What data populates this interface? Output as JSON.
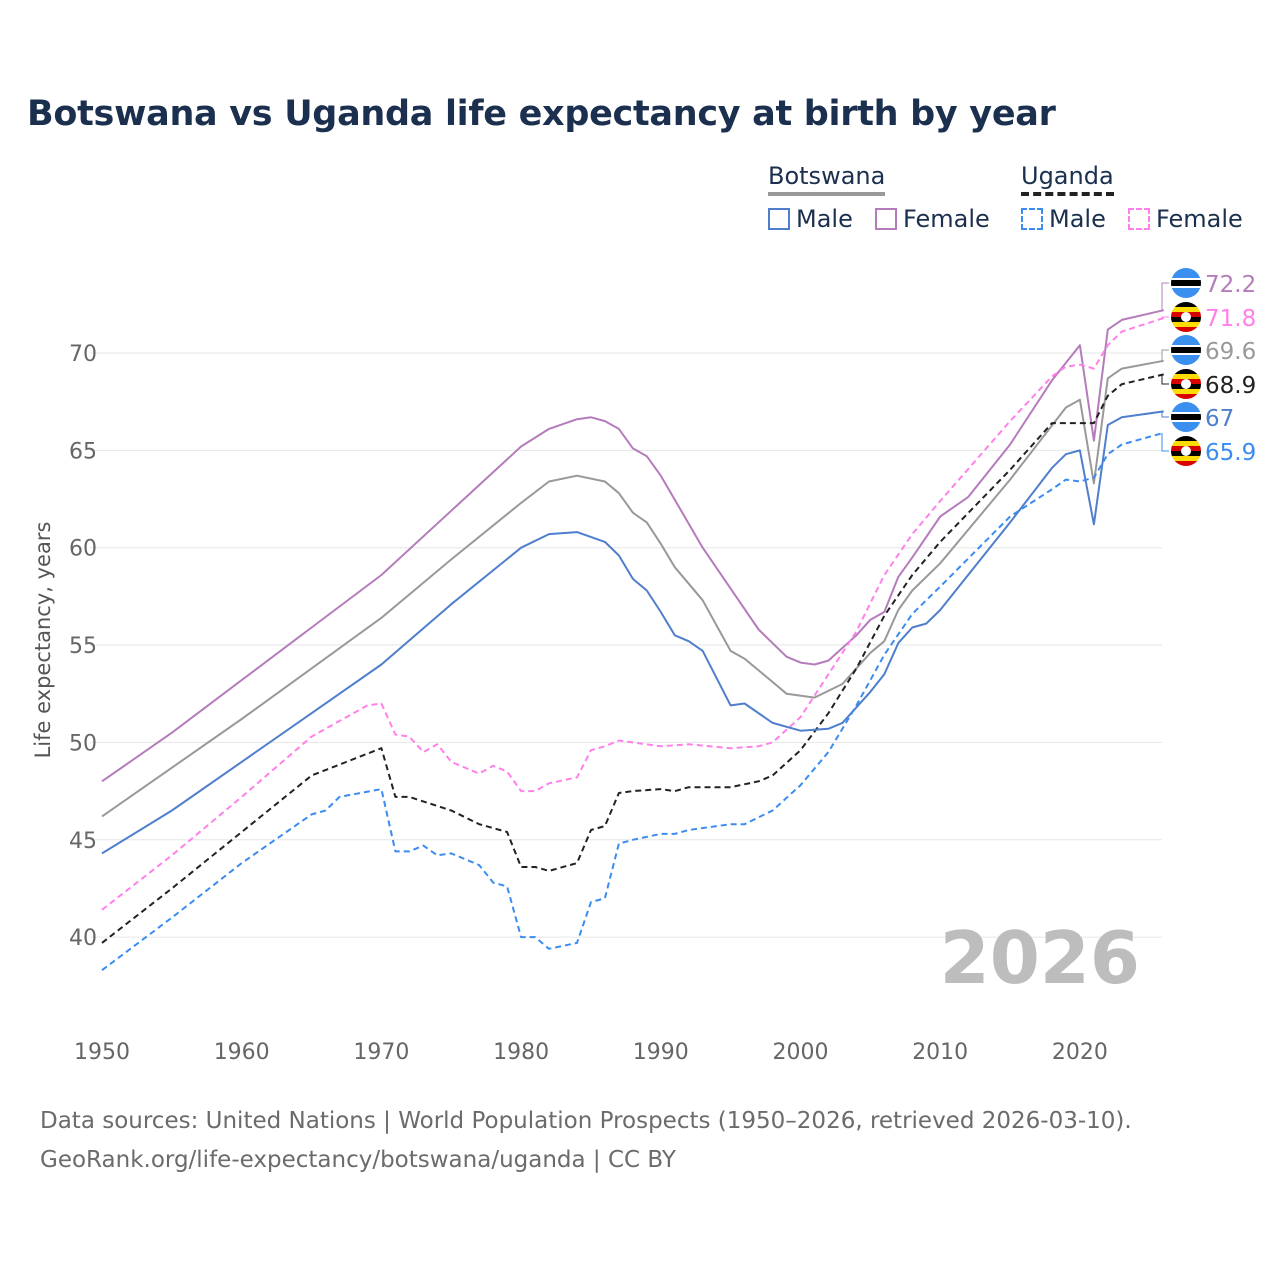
{
  "chart_data": {
    "type": "line",
    "title": "Botswana vs Uganda life expectancy at birth by year",
    "xlabel": "",
    "ylabel": "Life expectancy, years",
    "xlim": [
      1950,
      2026
    ],
    "ylim": [
      38,
      73
    ],
    "x_ticks": [
      "1950",
      "1960",
      "1970",
      "1980",
      "1990",
      "2000",
      "2010",
      "2020"
    ],
    "y_ticks": [
      "40",
      "45",
      "50",
      "55",
      "60",
      "65",
      "70"
    ],
    "grid": true,
    "watermark_year": "2026",
    "legend": {
      "placement": "top-right",
      "groups": [
        {
          "country": "Botswana",
          "items": [
            "Male",
            "Female"
          ]
        },
        {
          "country": "Uganda",
          "items": [
            "Male",
            "Female"
          ]
        }
      ]
    },
    "series": [
      {
        "name": "Botswana Female",
        "country": "Botswana",
        "color": "#b57cbb",
        "dashed": false,
        "end_label": "72.2",
        "x": [
          1950,
          1955,
          1960,
          1965,
          1970,
          1975,
          1980,
          1982,
          1984,
          1985,
          1986,
          1987,
          1988,
          1989,
          1990,
          1993,
          1995,
          1997,
          1999,
          2000,
          2001,
          2002,
          2004,
          2005,
          2006,
          2007,
          2008,
          2010,
          2012,
          2015,
          2018,
          2020,
          2021,
          2022,
          2023,
          2026
        ],
        "y": [
          48.0,
          50.5,
          53.2,
          55.9,
          58.6,
          61.9,
          65.2,
          66.1,
          66.6,
          66.7,
          66.5,
          66.1,
          65.1,
          64.7,
          63.7,
          60.0,
          57.9,
          55.8,
          54.4,
          54.1,
          54.0,
          54.2,
          55.5,
          56.3,
          56.7,
          58.5,
          59.5,
          61.6,
          62.6,
          65.3,
          68.6,
          70.4,
          65.5,
          71.2,
          71.7,
          72.2
        ]
      },
      {
        "name": "Uganda Female",
        "country": "Uganda",
        "color": "#ff80ea",
        "dashed": true,
        "end_label": "71.8",
        "x": [
          1950,
          1955,
          1960,
          1965,
          1969,
          1970,
          1971,
          1972,
          1973,
          1974,
          1975,
          1977,
          1978,
          1979,
          1980,
          1981,
          1982,
          1984,
          1985,
          1986,
          1987,
          1990,
          1992,
          1995,
          1997,
          1998,
          2000,
          2002,
          2004,
          2006,
          2008,
          2010,
          2015,
          2018,
          2019,
          2020,
          2021,
          2022,
          2023,
          2026
        ],
        "y": [
          41.4,
          44.2,
          47.2,
          50.3,
          51.9,
          52.0,
          50.4,
          50.3,
          49.5,
          49.9,
          49.0,
          48.4,
          48.8,
          48.5,
          47.5,
          47.5,
          47.9,
          48.2,
          49.6,
          49.8,
          50.1,
          49.8,
          49.9,
          49.7,
          49.8,
          50.0,
          51.3,
          53.5,
          55.7,
          58.6,
          60.7,
          62.4,
          66.5,
          68.8,
          69.3,
          69.4,
          69.2,
          70.4,
          71.1,
          71.8
        ]
      },
      {
        "name": "Botswana",
        "country": "Botswana",
        "color": "#999999",
        "dashed": false,
        "end_label": "69.6",
        "x": [
          1950,
          1955,
          1960,
          1965,
          1970,
          1975,
          1980,
          1982,
          1984,
          1986,
          1987,
          1988,
          1989,
          1990,
          1991,
          1993,
          1995,
          1996,
          1998,
          1999,
          2001,
          2003,
          2005,
          2006,
          2007,
          2008,
          2010,
          2015,
          2019,
          2020,
          2021,
          2022,
          2023,
          2026
        ],
        "y": [
          46.2,
          48.7,
          51.2,
          53.8,
          56.4,
          59.4,
          62.3,
          63.4,
          63.7,
          63.4,
          62.8,
          61.8,
          61.3,
          60.2,
          59.0,
          57.3,
          54.7,
          54.3,
          53.1,
          52.5,
          52.3,
          53.0,
          54.6,
          55.2,
          56.8,
          57.8,
          59.2,
          63.5,
          67.2,
          67.6,
          63.3,
          68.7,
          69.2,
          69.6
        ]
      },
      {
        "name": "Uganda",
        "country": "Uganda",
        "color": "#222222",
        "dashed": true,
        "end_label": "68.9",
        "x": [
          1950,
          1955,
          1960,
          1965,
          1970,
          1971,
          1972,
          1975,
          1977,
          1979,
          1980,
          1981,
          1982,
          1984,
          1985,
          1986,
          1987,
          1988,
          1990,
          1991,
          1992,
          1995,
          1997,
          1998,
          2000,
          2002,
          2004,
          2006,
          2008,
          2010,
          2015,
          2018,
          2020,
          2021,
          2022,
          2023,
          2026
        ],
        "y": [
          39.7,
          42.5,
          45.4,
          48.3,
          49.7,
          47.2,
          47.2,
          46.5,
          45.8,
          45.4,
          43.6,
          43.6,
          43.4,
          43.8,
          45.5,
          45.7,
          47.4,
          47.5,
          47.6,
          47.5,
          47.7,
          47.7,
          48.0,
          48.3,
          49.6,
          51.5,
          53.8,
          56.5,
          58.6,
          60.3,
          64.0,
          66.4,
          66.4,
          66.4,
          67.8,
          68.4,
          68.9
        ]
      },
      {
        "name": "Botswana Male",
        "country": "Botswana",
        "color": "#4f7fcc",
        "dashed": false,
        "end_label": "67",
        "x": [
          1950,
          1955,
          1960,
          1965,
          1970,
          1975,
          1980,
          1982,
          1984,
          1986,
          1987,
          1988,
          1989,
          1990,
          1991,
          1992,
          1993,
          1995,
          1996,
          1998,
          2000,
          2002,
          2003,
          2005,
          2006,
          2007,
          2008,
          2009,
          2010,
          2015,
          2018,
          2019,
          2020,
          2021,
          2022,
          2023,
          2026
        ],
        "y": [
          44.3,
          46.5,
          49.0,
          51.5,
          54.0,
          57.1,
          60.0,
          60.7,
          60.8,
          60.3,
          59.6,
          58.4,
          57.8,
          56.7,
          55.5,
          55.2,
          54.7,
          51.9,
          52.0,
          51.0,
          50.6,
          50.7,
          51.0,
          52.6,
          53.5,
          55.1,
          55.9,
          56.1,
          56.8,
          61.3,
          64.1,
          64.8,
          65.0,
          61.2,
          66.3,
          66.7,
          67.0
        ]
      },
      {
        "name": "Uganda Male",
        "country": "Uganda",
        "color": "#3b8cf0",
        "dashed": true,
        "end_label": "65.9",
        "x": [
          1950,
          1955,
          1960,
          1965,
          1966,
          1967,
          1970,
          1971,
          1972,
          1973,
          1974,
          1975,
          1977,
          1978,
          1979,
          1980,
          1981,
          1982,
          1984,
          1985,
          1986,
          1987,
          1988,
          1990,
          1991,
          1992,
          1995,
          1996,
          1998,
          2000,
          2002,
          2004,
          2006,
          2008,
          2010,
          2015,
          2018,
          2019,
          2020,
          2021,
          2022,
          2023,
          2026
        ],
        "y": [
          38.3,
          41.0,
          43.8,
          46.3,
          46.5,
          47.2,
          47.6,
          44.4,
          44.4,
          44.7,
          44.2,
          44.3,
          43.7,
          42.8,
          42.6,
          40.0,
          40.0,
          39.4,
          39.7,
          41.8,
          42.0,
          44.8,
          45.0,
          45.3,
          45.3,
          45.5,
          45.8,
          45.8,
          46.5,
          47.8,
          49.5,
          51.9,
          54.5,
          56.6,
          58.0,
          61.6,
          63.0,
          63.5,
          63.4,
          63.6,
          64.8,
          65.3,
          65.9
        ]
      }
    ]
  },
  "footer": {
    "line1": "Data sources: United Nations | World Population Prospects (1950–2026, retrieved 2026-03-10).",
    "line2": "GeoRank.org/life-expectancy/botswana/uganda | CC BY"
  }
}
